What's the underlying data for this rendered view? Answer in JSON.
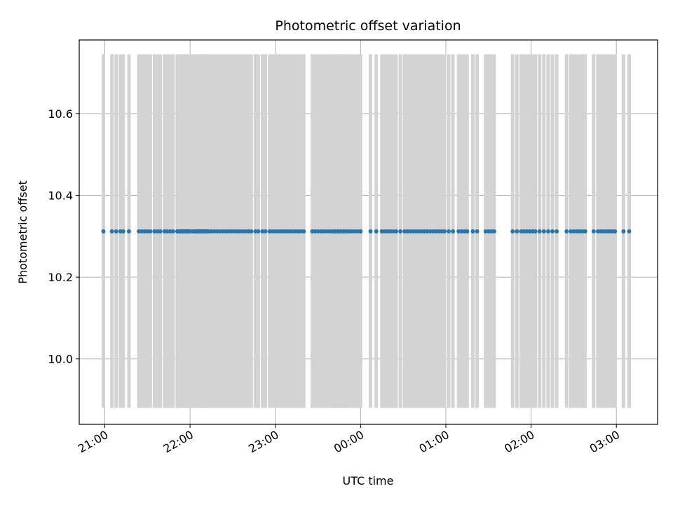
{
  "chart_data": {
    "type": "scatter",
    "title": "Photometric offset variation",
    "xlabel": "UTC time",
    "ylabel": "Photometric offset",
    "x_axis": {
      "kind": "time",
      "range": [
        "20:42",
        "03:29"
      ],
      "ticks": [
        "21:00",
        "22:00",
        "23:00",
        "00:00",
        "01:00",
        "02:00",
        "03:00"
      ]
    },
    "y_axis": {
      "range": [
        9.84,
        10.78
      ],
      "ticks": [
        "10.0",
        "10.2",
        "10.4",
        "10.6"
      ]
    },
    "grid": true,
    "error_bars": {
      "color": "#d3d3d3",
      "lower": 9.88,
      "upper": 10.745
    },
    "point_color": "#1f77b4",
    "series": [
      {
        "value": 10.312,
        "times": [
          "20:59",
          "21:05",
          "21:08",
          "21:11",
          "21:13",
          "21:17",
          "21:24",
          "21:26",
          "21:28",
          "21:30",
          "21:32",
          "21:35",
          "21:37",
          "21:39",
          "21:42",
          "21:44",
          "21:46",
          "21:48",
          "21:51",
          "21:53",
          "21:55",
          "21:57",
          "21:59",
          "22:03",
          "22:05",
          "22:07",
          "22:10",
          "21:52",
          "21:54",
          "21:56",
          "21:58",
          "22:00",
          "22:02",
          "22:04",
          "22:06",
          "22:08",
          "22:09",
          "22:11",
          "22:12",
          "22:13",
          "22:15",
          "22:17",
          "22:19",
          "22:21",
          "22:23",
          "22:25",
          "22:27",
          "22:29",
          "22:31",
          "22:33",
          "22:35",
          "22:37",
          "22:39",
          "22:41",
          "22:43",
          "22:46",
          "22:48",
          "22:51",
          "22:53",
          "22:56",
          "22:58",
          "23:00",
          "23:02",
          "23:04",
          "23:06",
          "23:08",
          "23:10",
          "23:12",
          "23:14",
          "23:16",
          "23:18",
          "23:20",
          "23:26",
          "23:28",
          "23:30",
          "23:32",
          "23:34",
          "23:36",
          "23:38",
          "23:40",
          "23:42",
          "23:44",
          "23:46",
          "23:48",
          "23:50",
          "23:52",
          "23:54",
          "23:56",
          "23:58",
          "23:40",
          "23:42",
          "23:44",
          "23:46",
          "23:48",
          "23:50",
          "00:00",
          "00:07",
          "00:11",
          "00:15",
          "00:17",
          "00:19",
          "00:21",
          "00:23",
          "00:25",
          "00:28",
          "00:31",
          "00:33",
          "00:35",
          "00:37",
          "00:39",
          "00:41",
          "00:43",
          "00:45",
          "00:47",
          "00:49",
          "00:51",
          "00:53",
          "00:55",
          "00:57",
          "00:59",
          "01:02",
          "01:05",
          "01:09",
          "01:11",
          "01:13",
          "01:15",
          "01:19",
          "01:22",
          "01:28",
          "01:30",
          "01:32",
          "01:34",
          "01:47",
          "01:50",
          "01:53",
          "01:55",
          "01:57",
          "01:59",
          "02:01",
          "02:03",
          "02:06",
          "02:09",
          "02:12",
          "02:15",
          "02:18",
          "02:25",
          "02:28",
          "02:30",
          "02:32",
          "02:34",
          "02:36",
          "02:38",
          "02:44",
          "02:47",
          "02:49",
          "02:51",
          "02:53",
          "02:55",
          "02:57",
          "02:59",
          "03:05",
          "03:09"
        ]
      }
    ]
  }
}
